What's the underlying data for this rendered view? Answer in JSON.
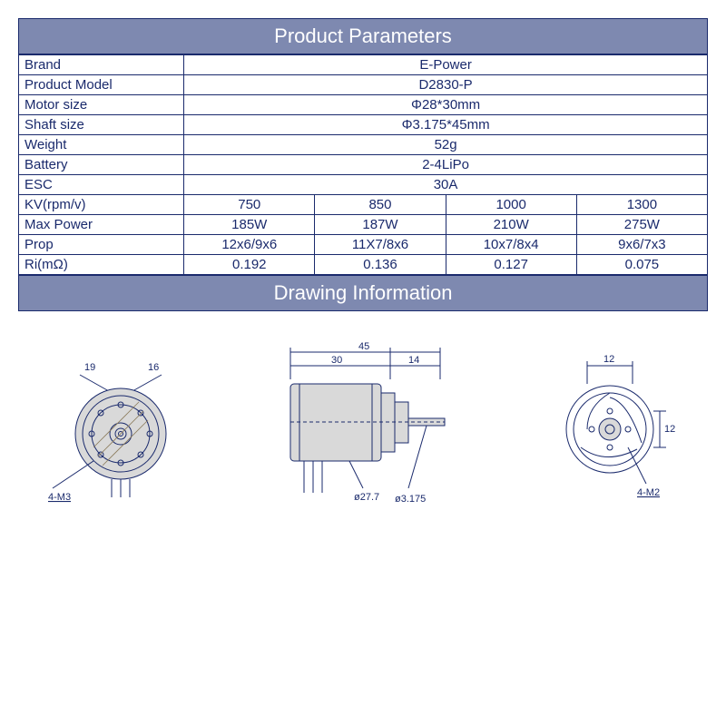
{
  "banners": {
    "params": "Product Parameters",
    "drawing": "Drawing Information"
  },
  "rows_full": [
    {
      "label": "Brand",
      "value": "E-Power"
    },
    {
      "label": "Product Model",
      "value": "D2830-P"
    },
    {
      "label": "Motor size",
      "value": "Φ28*30mm"
    },
    {
      "label": "Shaft size",
      "value": "Φ3.175*45mm"
    },
    {
      "label": "Weight",
      "value": "52g"
    },
    {
      "label": "Battery",
      "value": "2-4LiPo"
    },
    {
      "label": "ESC",
      "value": "30A"
    }
  ],
  "rows_4col": [
    {
      "label": "KV(rpm/v)",
      "c": [
        "750",
        "850",
        "1000",
        "1300"
      ]
    },
    {
      "label": "Max Power",
      "c": [
        "185W",
        "187W",
        "210W",
        "275W"
      ]
    },
    {
      "label": "Prop",
      "c": [
        "12x6/9x6",
        "11X7/8x6",
        "10x7/8x4",
        "9x6/7x3"
      ]
    },
    {
      "label": "Ri(mΩ)",
      "c": [
        "0.192",
        "0.136",
        "0.127",
        "0.075"
      ]
    }
  ],
  "dims": {
    "front": {
      "d19": "19",
      "d16": "16",
      "note": "4-M3"
    },
    "side": {
      "d45": "45",
      "d30": "30",
      "d14": "14",
      "dia": "ø27.7",
      "shaft": "ø3.175"
    },
    "rear": {
      "d12a": "12",
      "d12b": "12",
      "note": "4-M2"
    }
  },
  "colors": {
    "banner_bg": "#7e89b0",
    "banner_text": "#ffffff",
    "border": "#1a2a6c",
    "text": "#1a2a6c",
    "mech_fill": "#d9d9d9",
    "hatch": "#8a7a5a"
  }
}
